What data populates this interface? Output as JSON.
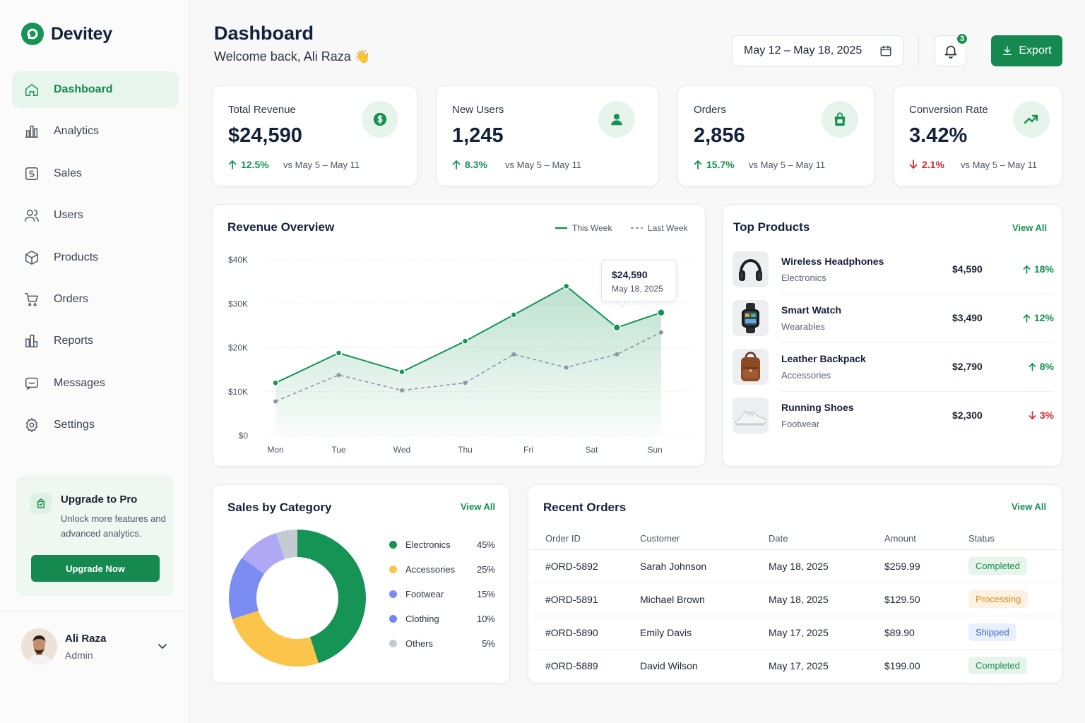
{
  "brand": {
    "name": "Devitey"
  },
  "sidebar": {
    "items": [
      {
        "label": "Dashboard",
        "icon": "home-icon",
        "active": true
      },
      {
        "label": "Analytics",
        "icon": "bar-chart-icon"
      },
      {
        "label": "Sales",
        "icon": "sales-icon"
      },
      {
        "label": "Users",
        "icon": "users-icon"
      },
      {
        "label": "Products",
        "icon": "box-icon"
      },
      {
        "label": "Orders",
        "icon": "cart-icon"
      },
      {
        "label": "Reports",
        "icon": "report-icon"
      },
      {
        "label": "Messages",
        "icon": "message-icon"
      },
      {
        "label": "Settings",
        "icon": "gear-icon"
      }
    ],
    "upgrade": {
      "title": "Upgrade to Pro",
      "text": "Unlock more features and advanced analytics.",
      "button": "Upgrade Now"
    },
    "user": {
      "name": "Ali Raza",
      "role": "Admin"
    }
  },
  "header": {
    "title": "Dashboard",
    "welcome": "Welcome back, Ali Raza 👋",
    "date_range": "May 12 – May 18, 2025",
    "notifications": "3",
    "export_label": "Export"
  },
  "stats": [
    {
      "label": "Total Revenue",
      "value": "$24,590",
      "delta": "12.5%",
      "direction": "up",
      "compare": "vs May 5 – May 11",
      "icon": "dollar-icon"
    },
    {
      "label": "New Users",
      "value": "1,245",
      "delta": "8.3%",
      "direction": "up",
      "compare": "vs May 5 – May 11",
      "icon": "user-icon"
    },
    {
      "label": "Orders",
      "value": "2,856",
      "delta": "15.7%",
      "direction": "up",
      "compare": "vs May 5 – May 11",
      "icon": "shopping-bag-icon"
    },
    {
      "label": "Conversion Rate",
      "value": "3.42%",
      "delta": "2.1%",
      "direction": "down",
      "compare": "vs May 5 – May 11",
      "icon": "trend-up-icon"
    }
  ],
  "revenue": {
    "title": "Revenue Overview",
    "tooltip": {
      "value": "$24,590",
      "date": "May 18, 2025"
    }
  },
  "chart_data": {
    "type": "area",
    "title": "Revenue Overview",
    "categories": [
      "Mon",
      "Tue",
      "Wed",
      "Thu",
      "Fri",
      "Sat",
      "Sun"
    ],
    "y_ticks": [
      "$0",
      "$10K",
      "$20K",
      "$30K",
      "$40K"
    ],
    "ylim": [
      0,
      40000
    ],
    "legend_position": "top-right",
    "grid": true,
    "series": [
      {
        "name": "This Week",
        "style": "solid",
        "color": "#159455",
        "points": [
          [
            0,
            12000
          ],
          [
            1,
            18800
          ],
          [
            2,
            14500
          ],
          [
            3,
            21500
          ],
          [
            3.77,
            27500
          ],
          [
            4.6,
            34000
          ],
          [
            5.4,
            24590
          ],
          [
            6.1,
            28000
          ]
        ]
      },
      {
        "name": "Last Week",
        "style": "dashed",
        "color": "#8a96ab",
        "points": [
          [
            0,
            7800
          ],
          [
            1,
            13800
          ],
          [
            2,
            10300
          ],
          [
            3,
            12000
          ],
          [
            3.77,
            18500
          ],
          [
            4.6,
            15500
          ],
          [
            5.4,
            18500
          ],
          [
            6.1,
            23500
          ]
        ]
      }
    ]
  },
  "top_products": {
    "title": "Top Products",
    "view_all": "View All",
    "items": [
      {
        "name": "Wireless Headphones",
        "category": "Electronics",
        "price": "$4,590",
        "trend": "18%",
        "direction": "up",
        "thumb": "headphones"
      },
      {
        "name": "Smart Watch",
        "category": "Wearables",
        "price": "$3,490",
        "trend": "12%",
        "direction": "up",
        "thumb": "watch"
      },
      {
        "name": "Leather Backpack",
        "category": "Accessories",
        "price": "$2,790",
        "trend": "8%",
        "direction": "up",
        "thumb": "backpack"
      },
      {
        "name": "Running Shoes",
        "category": "Footwear",
        "price": "$2,300",
        "trend": "3%",
        "direction": "down",
        "thumb": "shoe"
      }
    ]
  },
  "categories": {
    "title": "Sales by Category",
    "view_all": "View All",
    "items": [
      {
        "name": "Electronics",
        "pct": "45%",
        "value": 45,
        "color": "#159455"
      },
      {
        "name": "Accessories",
        "pct": "25%",
        "value": 25,
        "color": "#fbc44a"
      },
      {
        "name": "Footwear",
        "pct": "15%",
        "value": 15,
        "color": "#7b8cf3"
      },
      {
        "name": "Clothing",
        "pct": "10%",
        "value": 10,
        "color": "#b0a8f5"
      },
      {
        "name": "Others",
        "pct": "5%",
        "value": 5,
        "color": "#c4cbd3"
      }
    ]
  },
  "orders": {
    "title": "Recent Orders",
    "view_all": "View All",
    "columns": [
      "Order ID",
      "Customer",
      "Date",
      "Amount",
      "Status"
    ],
    "rows": [
      {
        "id": "#ORD-5892",
        "customer": "Sarah Johnson",
        "date": "May 18, 2025",
        "amount": "$259.99",
        "status": "Completed",
        "status_kind": "completed"
      },
      {
        "id": "#ORD-5891",
        "customer": "Michael Brown",
        "date": "May 18, 2025",
        "amount": "$129.50",
        "status": "Processing",
        "status_kind": "processing"
      },
      {
        "id": "#ORD-5890",
        "customer": "Emily Davis",
        "date": "May 17, 2025",
        "amount": "$89.90",
        "status": "Shipped",
        "status_kind": "shipped"
      },
      {
        "id": "#ORD-5889",
        "customer": "David Wilson",
        "date": "May 17, 2025",
        "amount": "$199.00",
        "status": "Completed",
        "status_kind": "completed"
      }
    ]
  },
  "colors": {
    "accent": "#159455",
    "accent_dark": "#15894f",
    "danger": "#d4292b"
  }
}
